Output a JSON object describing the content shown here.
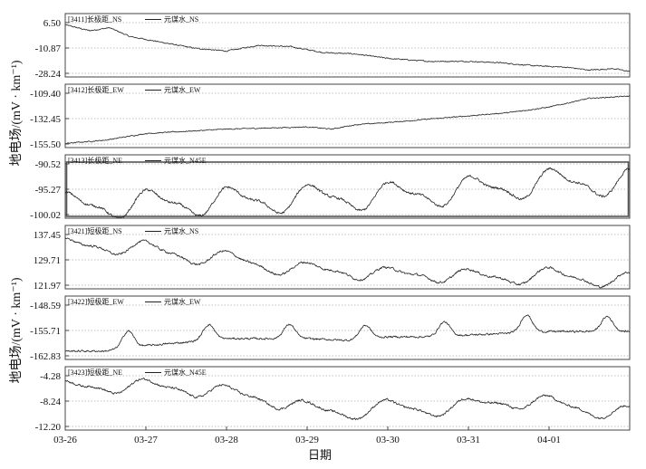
{
  "chart_data": {
    "type": "line",
    "xlabel": "日期",
    "x_ticks": [
      "03-26",
      "03-27",
      "03-28",
      "03-29",
      "03-30",
      "03-31",
      "04-01"
    ],
    "x_range": [
      "03-26",
      "04-02"
    ],
    "ylabel_top": "地电场/(mV · km⁻¹)",
    "ylabel_bottom": "地电场/(mV · km⁻¹)",
    "grid": "horizontal-dotted",
    "colors": {
      "line": "#222222",
      "frame": "#444444",
      "highlight": "#555555",
      "grid": "#aaaaaa"
    },
    "panels": [
      {
        "station_label": "[3411]长极距_NS",
        "legend": "元谋水_NS",
        "yticks": [
          "6.50",
          "-10.87",
          "-28.24"
        ],
        "ylim": [
          -28.24,
          6.5
        ],
        "highlighted": false,
        "keypoints": [
          [
            0,
            5
          ],
          [
            0.3,
            1
          ],
          [
            0.55,
            3
          ],
          [
            0.8,
            -3
          ],
          [
            1.0,
            -5
          ],
          [
            1.3,
            -8
          ],
          [
            1.6,
            -11
          ],
          [
            2.0,
            -13
          ],
          [
            2.4,
            -9
          ],
          [
            2.8,
            -10
          ],
          [
            3.2,
            -14
          ],
          [
            3.6,
            -15
          ],
          [
            4.0,
            -18
          ],
          [
            4.5,
            -20
          ],
          [
            5.0,
            -20
          ],
          [
            5.4,
            -21
          ],
          [
            5.8,
            -23
          ],
          [
            6.2,
            -24
          ],
          [
            6.5,
            -26
          ],
          [
            6.8,
            -25
          ],
          [
            7.0,
            -27
          ]
        ],
        "wave": 0.6
      },
      {
        "station_label": "[3412]长极距_EW",
        "legend": "元谋水_EW",
        "yticks": [
          "-109.40",
          "-132.45",
          "-155.50"
        ],
        "ylim": [
          -155.5,
          -109.4
        ],
        "highlighted": false,
        "keypoints": [
          [
            0,
            -155
          ],
          [
            0.5,
            -152
          ],
          [
            1.0,
            -146
          ],
          [
            1.5,
            -144
          ],
          [
            2.0,
            -142
          ],
          [
            2.5,
            -141
          ],
          [
            3.0,
            -140
          ],
          [
            3.3,
            -142
          ],
          [
            3.6,
            -138
          ],
          [
            4.0,
            -136
          ],
          [
            4.5,
            -133
          ],
          [
            5.0,
            -130
          ],
          [
            5.5,
            -127
          ],
          [
            6.0,
            -122
          ],
          [
            6.5,
            -114
          ],
          [
            7.0,
            -112
          ]
        ],
        "wave": 0.7
      },
      {
        "station_label": "[3413]长极距_NE",
        "legend": "元谋水_N45E",
        "yticks": [
          "-90.52",
          "-95.27",
          "-100.02"
        ],
        "ylim": [
          -100.02,
          -90.52
        ],
        "highlighted": true,
        "keypoints": [
          [
            0,
            -98.5
          ],
          [
            1,
            -98
          ],
          [
            2,
            -97.5
          ],
          [
            3,
            -97
          ],
          [
            4,
            -96.5
          ],
          [
            5,
            -95.5
          ],
          [
            6,
            -94
          ],
          [
            7,
            -94
          ]
        ],
        "osc": {
          "amp": 2.4,
          "phase": 1.0
        },
        "wave": 0.35
      },
      {
        "station_label": "[3421]短极距_NS",
        "legend": "元谋水_NS",
        "yticks": [
          "137.45",
          "129.71",
          "121.97"
        ],
        "ylim": [
          121.97,
          137.45
        ],
        "highlighted": false,
        "keypoints": [
          [
            0,
            134
          ],
          [
            0.5,
            134
          ],
          [
            1.0,
            133
          ],
          [
            1.5,
            131
          ],
          [
            2.0,
            130
          ],
          [
            2.5,
            128
          ],
          [
            3.0,
            126.5
          ],
          [
            3.5,
            126.5
          ],
          [
            4.0,
            125
          ],
          [
            4.5,
            125.5
          ],
          [
            5.0,
            124.5
          ],
          [
            5.5,
            124.5
          ],
          [
            6.0,
            125
          ],
          [
            6.5,
            124
          ],
          [
            7.0,
            123.5
          ]
        ],
        "osc": {
          "amp": 2.2,
          "phase": 1.2
        },
        "wave": 0.5
      },
      {
        "station_label": "[3422]短极距_EW",
        "legend": "元谋水_EW",
        "yticks": [
          "-148.59",
          "-155.71",
          "-162.83"
        ],
        "ylim": [
          -162.83,
          -148.59
        ],
        "highlighted": false,
        "keypoints": [
          [
            0,
            -161.5
          ],
          [
            0.5,
            -161.5
          ],
          [
            1.0,
            -160
          ],
          [
            1.5,
            -159
          ],
          [
            2.0,
            -158
          ],
          [
            2.5,
            -158
          ],
          [
            3.0,
            -158
          ],
          [
            3.5,
            -158.5
          ],
          [
            4.0,
            -157.5
          ],
          [
            4.5,
            -157.5
          ],
          [
            5.0,
            -157
          ],
          [
            5.5,
            -156.5
          ],
          [
            6.0,
            -156
          ],
          [
            6.5,
            -156
          ],
          [
            7.0,
            -156
          ]
        ],
        "peaks": [
          [
            0.78,
            4.8,
            0.1
          ],
          [
            1.78,
            4.4,
            0.1
          ],
          [
            2.78,
            4.0,
            0.1
          ],
          [
            3.72,
            3.8,
            0.1
          ],
          [
            4.7,
            4.0,
            0.1
          ],
          [
            5.72,
            5.0,
            0.1
          ],
          [
            6.72,
            4.2,
            0.1
          ]
        ],
        "wave": 0.4
      },
      {
        "station_label": "[3423]短极距_NE",
        "legend": "元谋水_N45E",
        "yticks": [
          "-4.28",
          "-8.24",
          "-12.20"
        ],
        "ylim": [
          -12.2,
          -4.28
        ],
        "highlighted": false,
        "keypoints": [
          [
            0,
            -6.2
          ],
          [
            0.5,
            -5.8
          ],
          [
            1.0,
            -6.0
          ],
          [
            1.5,
            -6.2
          ],
          [
            2.0,
            -7.0
          ],
          [
            2.5,
            -7.8
          ],
          [
            3.0,
            -9.5
          ],
          [
            3.5,
            -10.0
          ],
          [
            4.0,
            -9.2
          ],
          [
            4.5,
            -9.5
          ],
          [
            5.0,
            -9.0
          ],
          [
            5.5,
            -8.2
          ],
          [
            6.0,
            -8.6
          ],
          [
            6.5,
            -9.5
          ],
          [
            7.0,
            -10.2
          ]
        ],
        "osc": {
          "amp": 1.1,
          "phase": 1.3
        },
        "wave": 0.25
      }
    ]
  }
}
